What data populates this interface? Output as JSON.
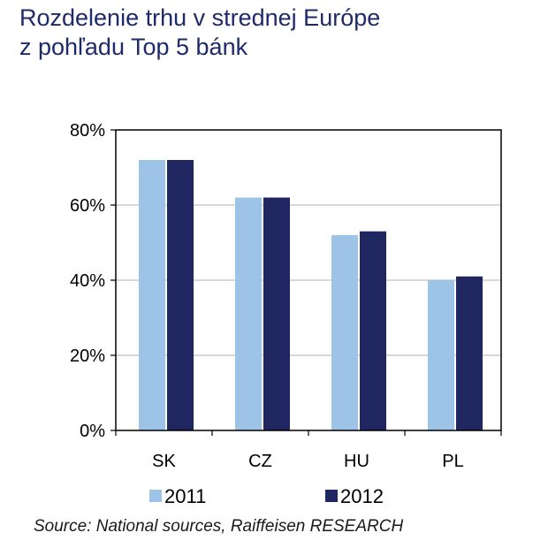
{
  "title_lines": [
    "Rozdelenie trhu v strednej Európe",
    "z pohľadu Top 5 bánk"
  ],
  "source": "Source: National sources, Raiffeisen RESEARCH",
  "colors": {
    "title": "#1f2a6b",
    "series_2011": "#9dc3e6",
    "series_2012": "#1f2660",
    "grid": "#b0b0b0",
    "axis": "#000000"
  },
  "chart_data": {
    "type": "bar",
    "categories": [
      "SK",
      "CZ",
      "HU",
      "PL"
    ],
    "series": [
      {
        "name": "2011",
        "values": [
          72,
          62,
          52,
          40
        ]
      },
      {
        "name": "2012",
        "values": [
          72,
          62,
          53,
          41
        ]
      }
    ],
    "ylim": [
      0,
      80
    ],
    "yticks": [
      0,
      20,
      40,
      60,
      80
    ],
    "ytick_labels": [
      "0%",
      "20%",
      "40%",
      "60%",
      "80%"
    ],
    "grid": true,
    "legend_position": "bottom"
  }
}
